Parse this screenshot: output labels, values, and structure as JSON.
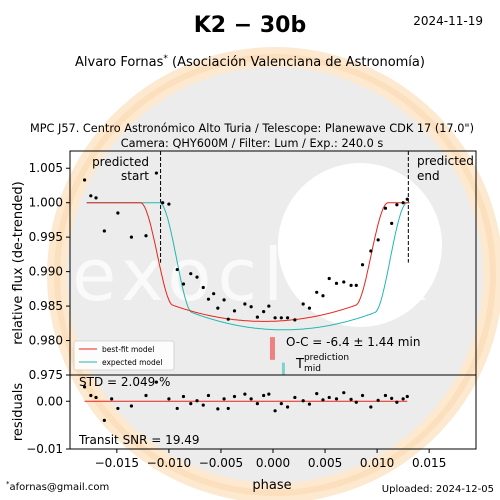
{
  "header": {
    "title": "K2 − 30b",
    "date": "2024-11-19",
    "observer": "Alvaro Fornas",
    "observer_mark": "*",
    "affiliation": "(Asociación Valenciana de Astronomía)"
  },
  "subtitle": {
    "line1": "MPC J57. Centro Astronómico Alto Turia / Telescope: Planewave CDK 17 (17.0\")",
    "line2": "Camera: QHY600M / Filter: Lum / Exp.: 240.0 s"
  },
  "footer": {
    "email": "afornas@gmail.com",
    "email_mark": "*",
    "uploaded": "Uploaded: 2024-12-05"
  },
  "watermark": {
    "text": "exoclock"
  },
  "chart_data": [
    {
      "type": "scatter",
      "panel": "main",
      "ylabel": "relative flux (de-trended)",
      "xlim": [
        -0.0195,
        0.0195
      ],
      "ylim": [
        0.975,
        1.0075
      ],
      "yticks": [
        0.975,
        0.98,
        0.985,
        0.99,
        0.995,
        1.0,
        1.005
      ],
      "ytick_labels": [
        "0.975",
        "0.980",
        "0.985",
        "0.990",
        "0.995",
        "1.000",
        "1.005"
      ],
      "predicted_start": -0.0108,
      "predicted_end": 0.013,
      "predicted_start_label": [
        "predicted",
        "start"
      ],
      "predicted_end_label": [
        "predicted",
        "end"
      ],
      "oc_text": "O-C = -6.4 ± 1.44 min",
      "oc_value": -0.00444,
      "tmid_label": "T",
      "tmid_sub": "mid",
      "tmid_sup": "prediction",
      "tmid_value": 0.001,
      "legend": [
        "best-fit model",
        "expected model"
      ],
      "colors": {
        "fit": "#e8231a",
        "expected": "#22b8b0",
        "points": "#000000",
        "oc_bar": "#f08080",
        "tmid_bar": "#7fd1cc"
      },
      "points": [
        [
          -0.0181,
          1.0033
        ],
        [
          -0.0175,
          1.001
        ],
        [
          -0.017,
          1.0007
        ],
        [
          -0.0162,
          0.9959
        ],
        [
          -0.0149,
          0.9985
        ],
        [
          -0.0136,
          0.995
        ],
        [
          -0.0122,
          0.9952
        ],
        [
          -0.0112,
          1.0043
        ],
        [
          -0.0106,
          1.0
        ],
        [
          -0.01,
          0.9998
        ],
        [
          -0.0092,
          0.9903
        ],
        [
          -0.0086,
          0.9882
        ],
        [
          -0.0079,
          0.9897
        ],
        [
          -0.0073,
          0.9892
        ],
        [
          -0.0067,
          0.9877
        ],
        [
          -0.0062,
          0.986
        ],
        [
          -0.0057,
          0.9868
        ],
        [
          -0.0053,
          0.9847
        ],
        [
          -0.0047,
          0.9859
        ],
        [
          -0.0043,
          0.9831
        ],
        [
          -0.0037,
          0.9843
        ],
        [
          -0.0027,
          0.9853
        ],
        [
          -0.0021,
          0.9849
        ],
        [
          -0.0015,
          0.9834
        ],
        [
          -0.0009,
          0.9842
        ],
        [
          -0.0004,
          0.985
        ],
        [
          0.0002,
          0.9833
        ],
        [
          0.0008,
          0.9833
        ],
        [
          0.0014,
          0.9833
        ],
        [
          0.0021,
          0.983
        ],
        [
          0.0029,
          0.9853
        ],
        [
          0.0035,
          0.9847
        ],
        [
          0.0042,
          0.987
        ],
        [
          0.0048,
          0.9865
        ],
        [
          0.0054,
          0.989
        ],
        [
          0.0061,
          0.9883
        ],
        [
          0.0068,
          0.9885
        ],
        [
          0.0075,
          0.988
        ],
        [
          0.008,
          0.988
        ],
        [
          0.0086,
          0.991
        ],
        [
          0.0094,
          0.993
        ],
        [
          0.0101,
          0.9946
        ],
        [
          0.0108,
          0.9992
        ],
        [
          0.0114,
          0.997
        ],
        [
          0.0119,
          0.9997
        ],
        [
          0.0125,
          1.0
        ],
        [
          0.0129,
          1.0005
        ]
      ]
    },
    {
      "type": "scatter",
      "panel": "residuals",
      "xlabel": "phase",
      "ylabel": "residuals",
      "xlim": [
        -0.0195,
        0.0195
      ],
      "ylim": [
        -0.01,
        0.0055
      ],
      "xticks": [
        -0.015,
        -0.01,
        -0.005,
        0.0,
        0.005,
        0.01,
        0.015
      ],
      "xtick_labels": [
        "−0.015",
        "−0.010",
        "−0.005",
        "0.000",
        "0.005",
        "0.010",
        "0.015"
      ],
      "yticks": [
        -0.01,
        0.0
      ],
      "ytick_labels": [
        "−0.01",
        "0.00"
      ],
      "std_text": "STD = 2.049 %",
      "snr_text": "Transit SNR = 19.49",
      "points": [
        [
          -0.0181,
          0.003
        ],
        [
          -0.0175,
          0.0012
        ],
        [
          -0.017,
          0.0008
        ],
        [
          -0.0162,
          -0.004
        ],
        [
          -0.0155,
          0.0005
        ],
        [
          -0.0149,
          -0.0015
        ],
        [
          -0.0136,
          -0.001
        ],
        [
          -0.0122,
          0.0012
        ],
        [
          -0.0112,
          0.004
        ],
        [
          -0.01,
          0.0005
        ],
        [
          -0.0092,
          -0.0015
        ],
        [
          -0.0086,
          0.001
        ],
        [
          -0.0079,
          -0.0005
        ],
        [
          -0.0073,
          0.0001
        ],
        [
          -0.0067,
          -0.0008
        ],
        [
          -0.0062,
          0.0012
        ],
        [
          -0.0053,
          -0.0016
        ],
        [
          -0.0047,
          0.0005
        ],
        [
          -0.0043,
          -0.0015
        ],
        [
          -0.0037,
          0.001
        ],
        [
          -0.0027,
          0.0015
        ],
        [
          -0.0021,
          0.0005
        ],
        [
          -0.0015,
          -0.0005
        ],
        [
          -0.0009,
          0.0012
        ],
        [
          -0.0004,
          0.0015
        ],
        [
          0.0002,
          -0.002
        ],
        [
          0.0008,
          -0.0005
        ],
        [
          0.0014,
          -0.0012
        ],
        [
          0.0021,
          0.0008
        ],
        [
          0.0029,
          0.0001
        ],
        [
          0.0035,
          -0.0006
        ],
        [
          0.0042,
          0.0016
        ],
        [
          0.0048,
          0.0003
        ],
        [
          0.0054,
          0.0008
        ],
        [
          0.0061,
          0.0005
        ],
        [
          0.0068,
          0.0018
        ],
        [
          0.0075,
          0.0004
        ],
        [
          0.008,
          -0.0002
        ],
        [
          0.0086,
          0.0012
        ],
        [
          0.0094,
          -0.0012
        ],
        [
          0.0101,
          0.0002
        ],
        [
          0.0108,
          0.0012
        ],
        [
          0.0114,
          0.0006
        ],
        [
          0.0119,
          -0.0002
        ],
        [
          0.0125,
          0.0005
        ],
        [
          0.0129,
          0.001
        ]
      ]
    }
  ]
}
